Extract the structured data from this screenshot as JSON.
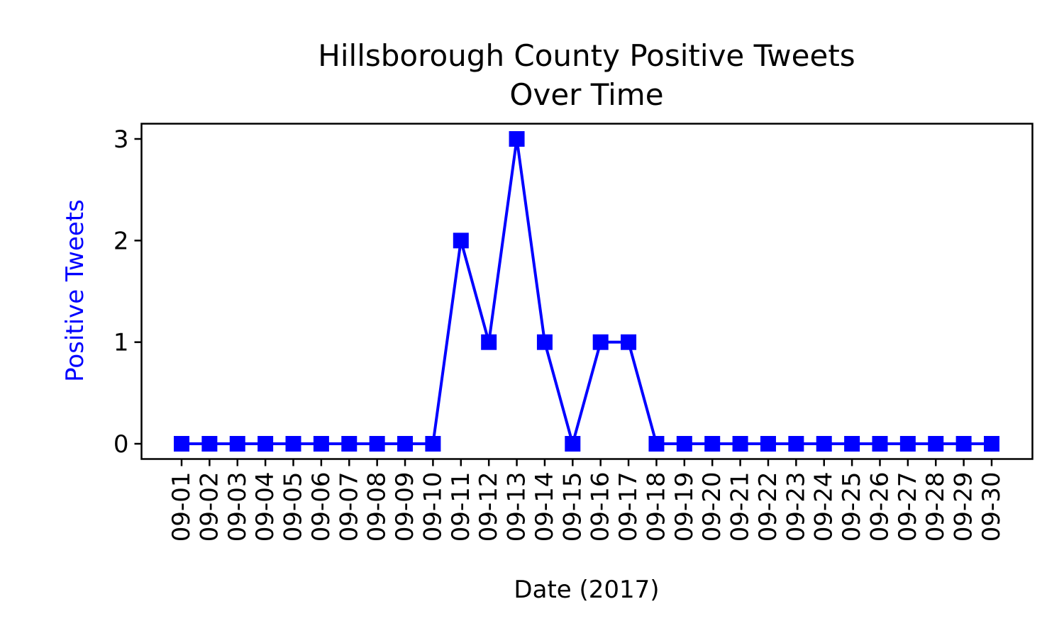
{
  "chart_data": {
    "type": "line",
    "title_line1": "Hillsborough County Positive Tweets",
    "title_line2": "Over Time",
    "xlabel": "Date (2017)",
    "ylabel": "Positive Tweets",
    "ylim": [
      -0.15,
      3.15
    ],
    "y_ticks": [
      0,
      1,
      2,
      3
    ],
    "grid": false,
    "marker": "square",
    "line_color": "#0000ff",
    "ylabel_color": "#0000ff",
    "categories": [
      "09-01",
      "09-02",
      "09-03",
      "09-04",
      "09-05",
      "09-06",
      "09-07",
      "09-08",
      "09-09",
      "09-10",
      "09-11",
      "09-12",
      "09-13",
      "09-14",
      "09-15",
      "09-16",
      "09-17",
      "09-18",
      "09-19",
      "09-20",
      "09-21",
      "09-22",
      "09-23",
      "09-24",
      "09-25",
      "09-26",
      "09-27",
      "09-28",
      "09-29",
      "09-30"
    ],
    "series": [
      {
        "values": [
          0,
          0,
          0,
          0,
          0,
          0,
          0,
          0,
          0,
          0,
          2,
          1,
          3,
          1,
          0,
          1,
          1,
          0,
          0,
          0,
          0,
          0,
          0,
          0,
          0,
          0,
          0,
          0,
          0,
          0
        ]
      }
    ]
  }
}
